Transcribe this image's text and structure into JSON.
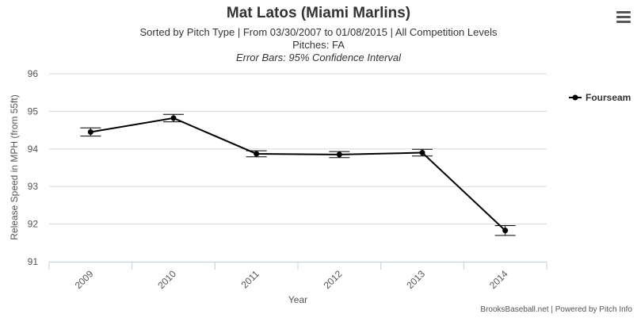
{
  "chart_data": {
    "type": "line",
    "title": "Mat Latos (Miami Marlins)",
    "subtitle": "Sorted by Pitch Type | From 03/30/2007 to 01/08/2015 | All Competition Levels",
    "subtitle2": "Pitches: FA",
    "subtitle3": "Error Bars: 95% Confidence Interval",
    "xlabel": "Year",
    "ylabel": "Release Speed in MPH (from 55ft)",
    "categories": [
      "2009",
      "2010",
      "2011",
      "2012",
      "2013",
      "2014"
    ],
    "ylim": [
      91,
      96
    ],
    "yticks": [
      91,
      92,
      93,
      94,
      95,
      96
    ],
    "grid": true,
    "legend_position": "right",
    "series": [
      {
        "name": "Fourseam",
        "color": "#000000",
        "values": [
          94.45,
          94.82,
          93.87,
          93.85,
          93.9,
          91.83
        ],
        "error_low": [
          94.34,
          94.72,
          93.79,
          93.77,
          93.81,
          91.7
        ],
        "error_high": [
          94.56,
          94.92,
          93.95,
          93.93,
          93.99,
          91.96
        ]
      }
    ]
  },
  "credits": "BrooksBaseball.net | Powered by Pitch Info",
  "menu_icon": "hamburger-menu-icon"
}
